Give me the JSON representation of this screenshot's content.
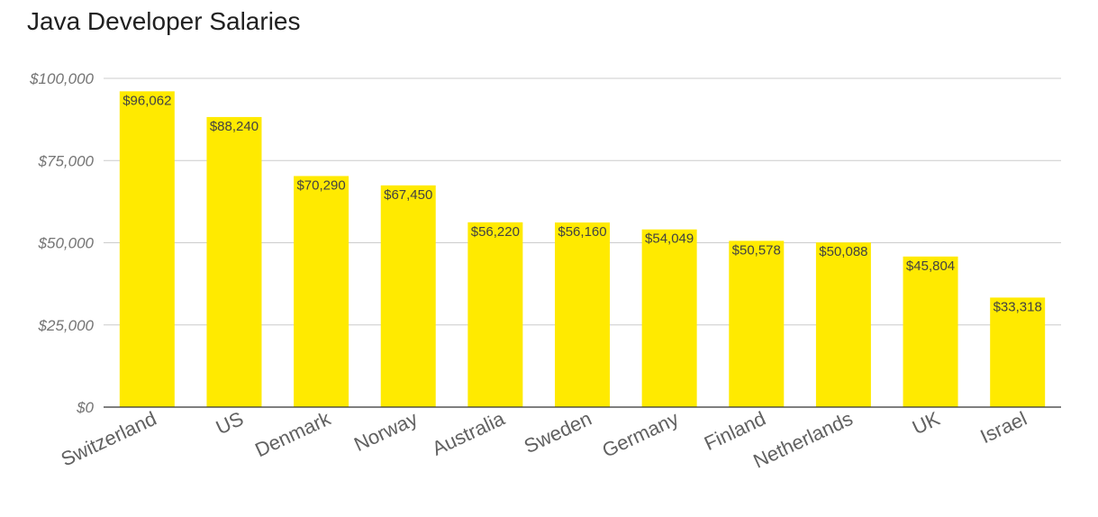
{
  "chart_data": {
    "type": "bar",
    "title": "Java Developer Salaries",
    "categories": [
      "Switzerland",
      "US",
      "Denmark",
      "Norway",
      "Australia",
      "Sweden",
      "Germany",
      "Finland",
      "Netherlands",
      "UK",
      "Israel"
    ],
    "values": [
      96062,
      88240,
      70290,
      67450,
      56220,
      56160,
      54049,
      50578,
      50088,
      45804,
      33318
    ],
    "data_labels": [
      "$96,062",
      "$88,240",
      "$70,290",
      "$67,450",
      "$56,220",
      "$56,160",
      "$54,049",
      "$50,578",
      "$50,088",
      "$45,804",
      "$33,318"
    ],
    "yticks": [
      0,
      25000,
      50000,
      75000,
      100000
    ],
    "ytick_labels": [
      "$0",
      "$25,000",
      "$50,000",
      "$75,000",
      "$100,000"
    ],
    "ylim": [
      0,
      100000
    ],
    "xlabel": "",
    "ylabel": "",
    "grid": true,
    "bar_color": "#FFEA00",
    "grid_color": "#CCCCCC",
    "axis_color": "#333333"
  }
}
